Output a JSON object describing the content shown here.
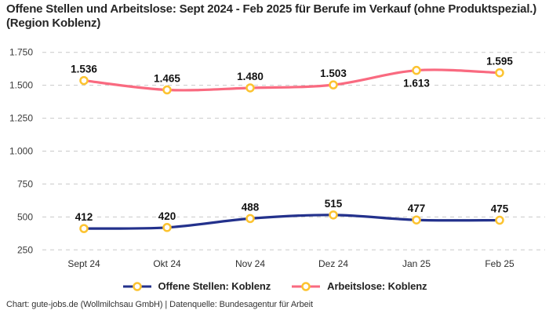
{
  "title": "Offene Stellen und Arbeitslose: Sept 2024 - Feb 2025 für Berufe im Verkauf (ohne Produktspezial.) (Region Koblenz)",
  "footer": "Chart: gute-jobs.de (Wollmilchsau GmbH) | Datenquelle: Bundesagentur für Arbeit",
  "colors": {
    "offene_stellen": "#23318c",
    "arbeitslose": "#f96a80",
    "marker_ring": "#fcc330",
    "marker_fill": "#ffffff",
    "grid": "#c9c9c9",
    "title_text": "#262626"
  },
  "chart_data": {
    "type": "line",
    "title": "Offene Stellen und Arbeitslose: Sept 2024 - Feb 2025 für Berufe im Verkauf (ohne Produktspezial.) (Region Koblenz)",
    "xlabel": "",
    "ylabel": "",
    "categories": [
      "Sept 24",
      "Okt 24",
      "Nov 24",
      "Dez 24",
      "Jan 25",
      "Feb 25"
    ],
    "series": [
      {
        "name": "Offene Stellen: Koblenz",
        "color_key": "offene_stellen",
        "values": [
          412,
          420,
          488,
          515,
          477,
          475
        ],
        "labels": [
          "412",
          "420",
          "488",
          "515",
          "477",
          "475"
        ],
        "label_below": [
          false,
          false,
          false,
          false,
          false,
          false
        ]
      },
      {
        "name": "Arbeitslose: Koblenz",
        "color_key": "arbeitslose",
        "values": [
          1536,
          1465,
          1480,
          1503,
          1613,
          1595
        ],
        "labels": [
          "1.536",
          "1.465",
          "1.480",
          "1.503",
          "1.613",
          "1.595"
        ],
        "label_below": [
          false,
          false,
          false,
          false,
          true,
          false
        ]
      }
    ],
    "y_ticks": [
      {
        "value": 250,
        "label": "250"
      },
      {
        "value": 500,
        "label": "500"
      },
      {
        "value": 750,
        "label": "750"
      },
      {
        "value": 1000,
        "label": "1.000"
      },
      {
        "value": 1250,
        "label": "1.250"
      },
      {
        "value": 1500,
        "label": "1.500"
      },
      {
        "value": 1750,
        "label": "1.750"
      }
    ],
    "ylim": [
      250,
      1750
    ],
    "grid": "horizontal-dashed",
    "legend_position": "bottom",
    "marker": "open-circle"
  }
}
